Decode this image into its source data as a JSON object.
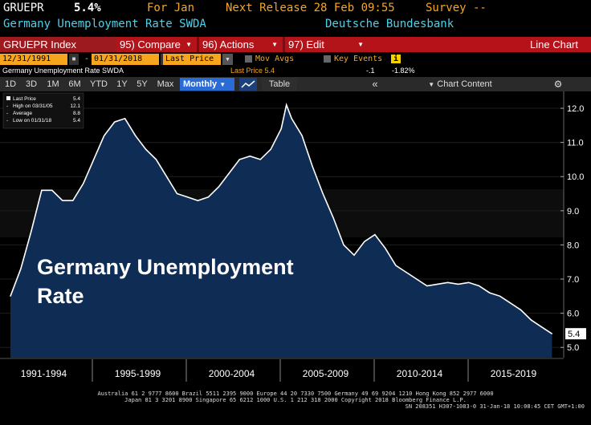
{
  "header": {
    "ticker": "GRUEPR",
    "last_value": "5.4%",
    "period": "For Jan",
    "next_release": "Next Release 28 Feb 09:55",
    "survey": "Survey --",
    "description": "Germany Unemployment Rate SWDA",
    "source": "Deutsche Bundesbank"
  },
  "menu": {
    "index": "GRUEPR Index",
    "compare": "95) Compare",
    "actions": "96) Actions",
    "edit": "97) Edit",
    "chart_type": "Line Chart"
  },
  "controls": {
    "start_date": "12/31/1991",
    "end_date": "01/31/2018",
    "field": "Last Price",
    "mov_avgs": "Mov Avgs",
    "key_events": "Key Events",
    "info": "i"
  },
  "lastprice_row": {
    "series": "Germany Unemployment Rate SWDA",
    "last_price": "Last Price 5.4",
    "change": "-.1",
    "pct_change": "-1.82%"
  },
  "toolbar": {
    "ranges": [
      "1D",
      "3D",
      "1M",
      "6M",
      "YTD",
      "1Y",
      "5Y",
      "Max"
    ],
    "frequency": "Monthly",
    "table": "Table",
    "collapse": "«",
    "chart_content": "Chart Content",
    "settings": "⚙"
  },
  "legend": {
    "last_price": "Last Price",
    "last_price_val": "5.4",
    "high": "High on 03/31/05",
    "high_val": "12.1",
    "average": "Average",
    "average_val": "8.8",
    "low": "Low on 01/31/18",
    "low_val": "5.4"
  },
  "overlay_title": [
    "Germany Unemployment",
    "Rate"
  ],
  "footer": {
    "line1": "Australia 61 2 9777 8600 Brazil 5511 2395 9000 Europe 44 20 7330 7500 Germany 49 69 9204 1210 Hong Kong 852 2977 6000",
    "line2": "Japan 81 3 3201 8900        Singapore 65 6212 1000        U.S. 1 212 318 2000           Copyright 2018 Bloomberg Finance L.P.",
    "line3": "SN 208351 H307-1083-0 31-Jan-18 10:08:45 CET  GMT+1:00"
  },
  "colors": {
    "area_fill": "#0f2c55",
    "line": "#ffffff",
    "menu_red": "#b2141a",
    "amber": "#f5a623",
    "cyan": "#4fd0e8"
  },
  "chart_data": {
    "type": "area",
    "title": "Germany Unemployment Rate",
    "x_tick_labels": [
      "1991-1994",
      "1995-1999",
      "2000-2004",
      "2005-2009",
      "2010-2014",
      "2015-2019"
    ],
    "ylim": [
      4.7,
      12.4
    ],
    "y_ticks": [
      5.0,
      6.0,
      7.0,
      8.0,
      9.0,
      10.0,
      11.0,
      12.0
    ],
    "last_value_label": "5.4",
    "x": [
      1992.0,
      1992.5,
      1993.0,
      1993.5,
      1994.0,
      1994.5,
      1995.0,
      1995.5,
      1996.0,
      1996.5,
      1997.0,
      1997.5,
      1998.0,
      1998.5,
      1999.0,
      1999.5,
      2000.0,
      2000.5,
      2001.0,
      2001.5,
      2002.0,
      2002.5,
      2003.0,
      2003.5,
      2004.0,
      2004.5,
      2005.0,
      2005.25,
      2005.5,
      2006.0,
      2006.5,
      2007.0,
      2007.5,
      2008.0,
      2008.5,
      2009.0,
      2009.5,
      2010.0,
      2010.5,
      2011.0,
      2011.5,
      2012.0,
      2012.5,
      2013.0,
      2013.5,
      2014.0,
      2014.5,
      2015.0,
      2015.5,
      2016.0,
      2016.5,
      2017.0,
      2017.5,
      2018.0
    ],
    "values": [
      6.5,
      7.3,
      8.4,
      9.6,
      9.6,
      9.3,
      9.3,
      9.8,
      10.5,
      11.2,
      11.6,
      11.7,
      11.2,
      10.8,
      10.5,
      10.0,
      9.5,
      9.4,
      9.3,
      9.4,
      9.7,
      10.1,
      10.5,
      10.6,
      10.5,
      10.8,
      11.4,
      12.1,
      11.7,
      11.2,
      10.3,
      9.5,
      8.8,
      8.0,
      7.7,
      8.1,
      8.3,
      7.9,
      7.4,
      7.2,
      7.0,
      6.8,
      6.85,
      6.9,
      6.85,
      6.9,
      6.8,
      6.6,
      6.5,
      6.3,
      6.1,
      5.8,
      5.6,
      5.4
    ]
  }
}
